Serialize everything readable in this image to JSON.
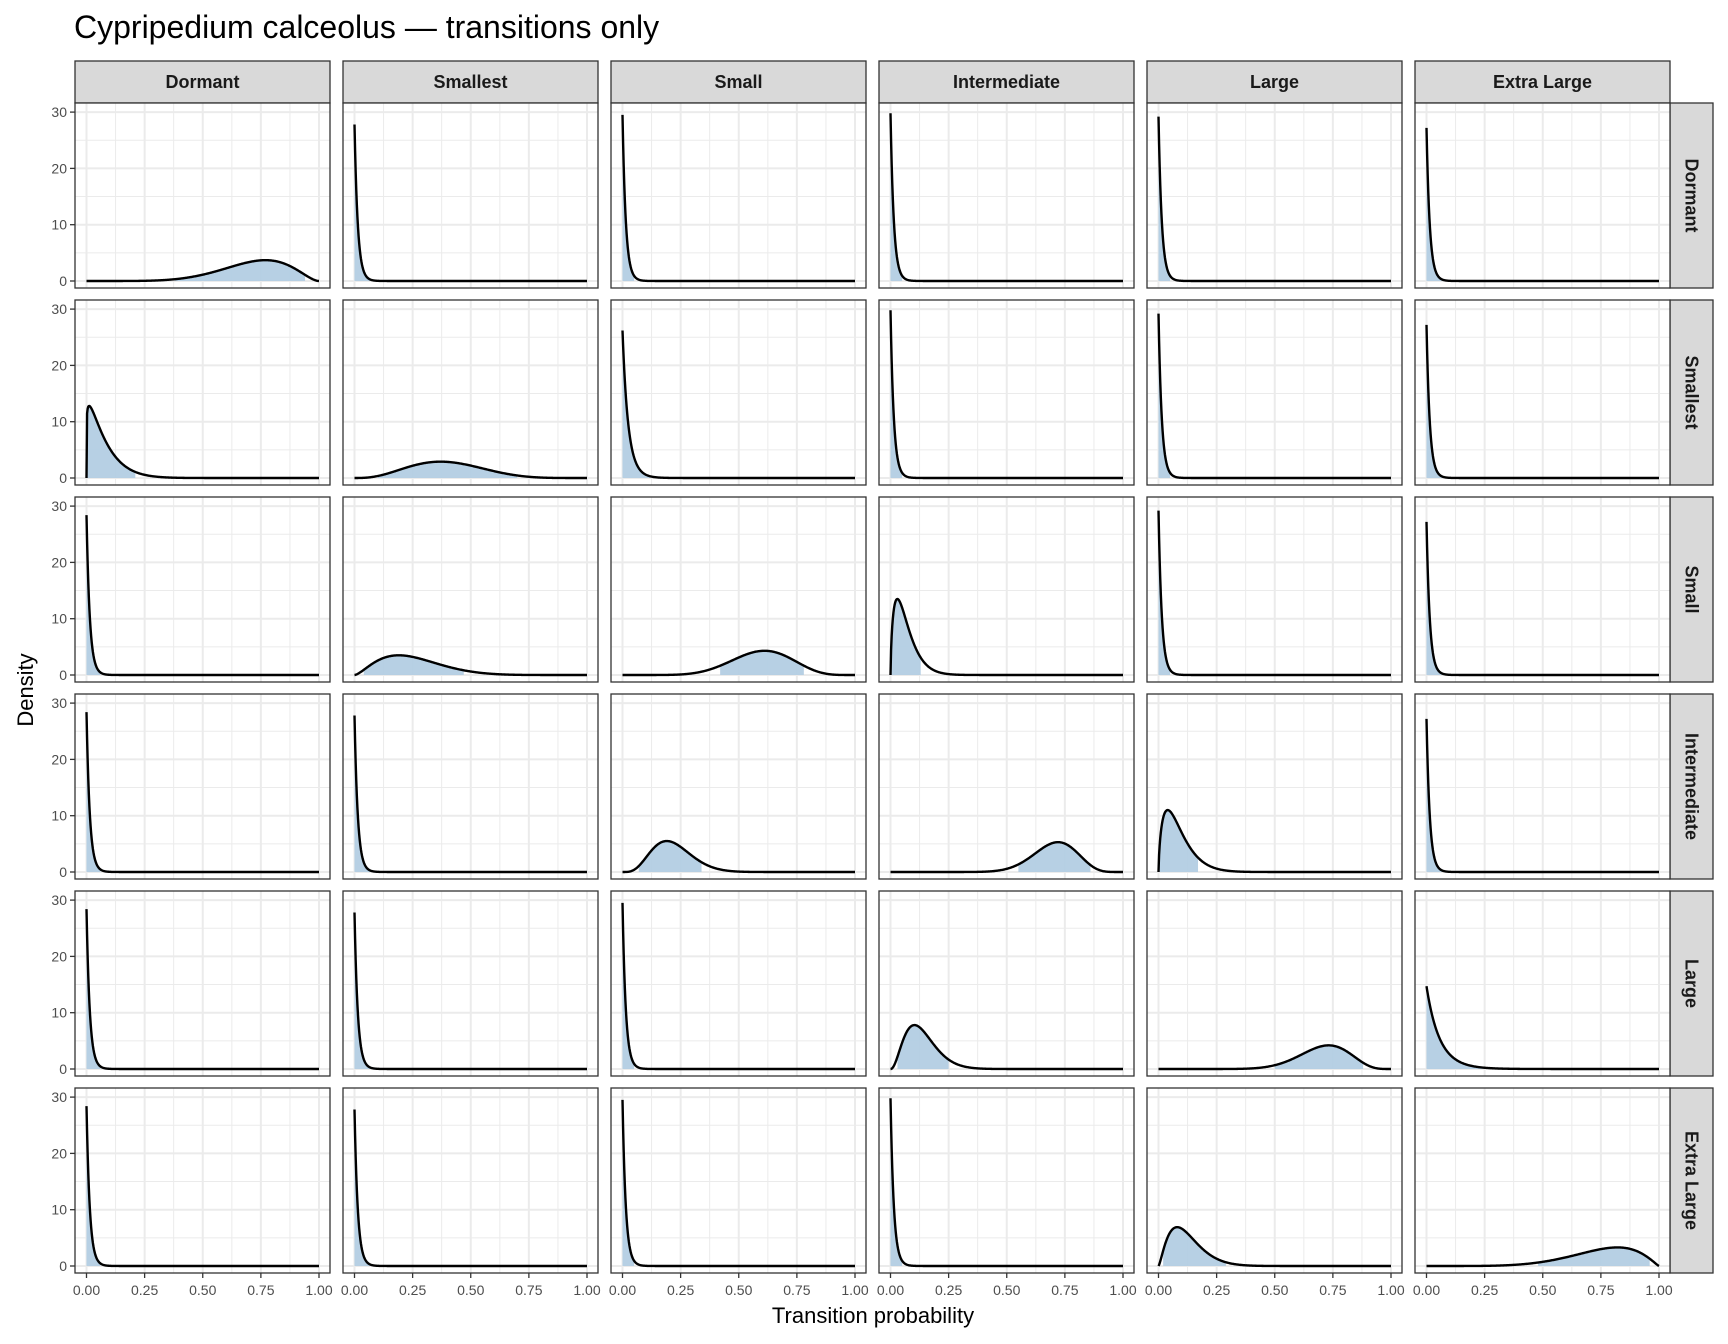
{
  "chart_data": {
    "type": "area",
    "title": "Cypripedium calceolus — transitions only",
    "xlabel": "Transition probability",
    "ylabel": "Density",
    "xlim": [
      0,
      1
    ],
    "ylim": [
      0,
      30
    ],
    "x_ticks": [
      "0.00",
      "0.25",
      "0.50",
      "0.75",
      "1.00"
    ],
    "y_ticks": [
      "0",
      "10",
      "20",
      "30"
    ],
    "grid": true,
    "legend": "none",
    "facet_cols": [
      "Dormant",
      "Smallest",
      "Small",
      "Intermediate",
      "Large",
      "Extra Large"
    ],
    "facet_rows": [
      "Dormant",
      "Smallest",
      "Small",
      "Intermediate",
      "Large",
      "Extra Large"
    ],
    "colors": {
      "fill": "#b3cde3",
      "line": "#000000",
      "strip_bg": "#d9d9d9",
      "panel_border": "#333333",
      "grid": "#ebebeb"
    },
    "panels": [
      [
        {
          "shape": "beta",
          "mode": 0.77,
          "peak": 3.7,
          "a": 7.0,
          "b": 2.8,
          "shade": [
            0.38,
            0.94
          ]
        },
        {
          "shape": "spike",
          "peak": 27.8,
          "shade": [
            0.0,
            0.07
          ]
        },
        {
          "shape": "spike",
          "peak": 29.5,
          "shade": [
            0.0,
            0.05
          ]
        },
        {
          "shape": "spike",
          "peak": 29.8,
          "shade": [
            0.0,
            0.05
          ]
        },
        {
          "shape": "spike",
          "peak": 29.2,
          "shade": [
            0.0,
            0.05
          ]
        },
        {
          "shape": "spike",
          "peak": 27.2,
          "shade": [
            0.0,
            0.07
          ]
        }
      ],
      [
        {
          "shape": "beta",
          "mode": 0.01,
          "peak": 12.8,
          "a": 1.15,
          "b": 14.0,
          "shade": [
            0.0,
            0.21
          ]
        },
        {
          "shape": "beta",
          "mode": 0.37,
          "peak": 2.9,
          "a": 4.0,
          "b": 6.1,
          "shade": [
            0.1,
            0.7
          ]
        },
        {
          "shape": "spike",
          "peak": 26.2,
          "k": 30,
          "shade": [
            0.0,
            0.12
          ]
        },
        {
          "shape": "spike",
          "peak": 29.8,
          "shade": [
            0.0,
            0.05
          ]
        },
        {
          "shape": "spike",
          "peak": 29.2,
          "shade": [
            0.0,
            0.05
          ]
        },
        {
          "shape": "spike",
          "peak": 27.2,
          "shade": [
            0.0,
            0.07
          ]
        }
      ],
      [
        {
          "shape": "spike",
          "peak": 28.4,
          "shade": [
            0.0,
            0.06
          ]
        },
        {
          "shape": "beta",
          "mode": 0.19,
          "peak": 3.5,
          "a": 2.6,
          "b": 7.8,
          "shade": [
            0.04,
            0.47
          ]
        },
        {
          "shape": "beta",
          "mode": 0.61,
          "peak": 4.3,
          "a": 9.0,
          "b": 6.1,
          "shade": [
            0.42,
            0.78
          ]
        },
        {
          "shape": "beta",
          "mode": 0.03,
          "peak": 13.5,
          "a": 1.7,
          "b": 24.0,
          "shade": [
            0.0,
            0.13
          ]
        },
        {
          "shape": "spike",
          "peak": 29.2,
          "shade": [
            0.0,
            0.05
          ]
        },
        {
          "shape": "spike",
          "peak": 27.2,
          "shade": [
            0.0,
            0.07
          ]
        }
      ],
      [
        {
          "shape": "spike",
          "peak": 28.4,
          "shade": [
            0.0,
            0.06
          ]
        },
        {
          "shape": "spike",
          "peak": 27.8,
          "shade": [
            0.0,
            0.07
          ]
        },
        {
          "shape": "beta",
          "mode": 0.19,
          "peak": 5.5,
          "a": 5.0,
          "b": 18.0,
          "shade": [
            0.07,
            0.34
          ]
        },
        {
          "shape": "beta",
          "mode": 0.72,
          "peak": 5.3,
          "a": 17.0,
          "b": 7.2,
          "shade": [
            0.55,
            0.86
          ]
        },
        {
          "shape": "beta",
          "mode": 0.04,
          "peak": 11.0,
          "a": 1.7,
          "b": 18.0,
          "shade": [
            0.0,
            0.17
          ]
        },
        {
          "shape": "spike",
          "peak": 27.2,
          "shade": [
            0.0,
            0.07
          ]
        }
      ],
      [
        {
          "shape": "spike",
          "peak": 28.4,
          "shade": [
            0.0,
            0.06
          ]
        },
        {
          "shape": "spike",
          "peak": 27.8,
          "shade": [
            0.0,
            0.07
          ]
        },
        {
          "shape": "spike",
          "peak": 29.5,
          "shade": [
            0.0,
            0.05
          ]
        },
        {
          "shape": "beta",
          "mode": 0.1,
          "peak": 7.8,
          "a": 3.3,
          "b": 21.0,
          "shade": [
            0.03,
            0.25
          ]
        },
        {
          "shape": "beta",
          "mode": 0.73,
          "peak": 4.2,
          "a": 13.0,
          "b": 5.4,
          "shade": [
            0.5,
            0.88
          ]
        },
        {
          "shape": "decay",
          "peak": 14.7,
          "k": 14,
          "shade": [
            0.0,
            0.25
          ]
        }
      ],
      [
        {
          "shape": "spike",
          "peak": 28.4,
          "shade": [
            0.0,
            0.06
          ]
        },
        {
          "shape": "spike",
          "peak": 27.8,
          "shade": [
            0.0,
            0.07
          ]
        },
        {
          "shape": "spike",
          "peak": 29.5,
          "shade": [
            0.0,
            0.05
          ]
        },
        {
          "shape": "spike",
          "peak": 29.8,
          "shade": [
            0.0,
            0.05
          ]
        },
        {
          "shape": "beta",
          "mode": 0.08,
          "peak": 6.9,
          "a": 2.4,
          "b": 17.0,
          "shade": [
            0.02,
            0.29
          ]
        },
        {
          "shape": "beta",
          "mode": 0.82,
          "peak": 3.3,
          "a": 6.5,
          "b": 2.2,
          "shade": [
            0.48,
            0.96
          ]
        }
      ]
    ]
  }
}
